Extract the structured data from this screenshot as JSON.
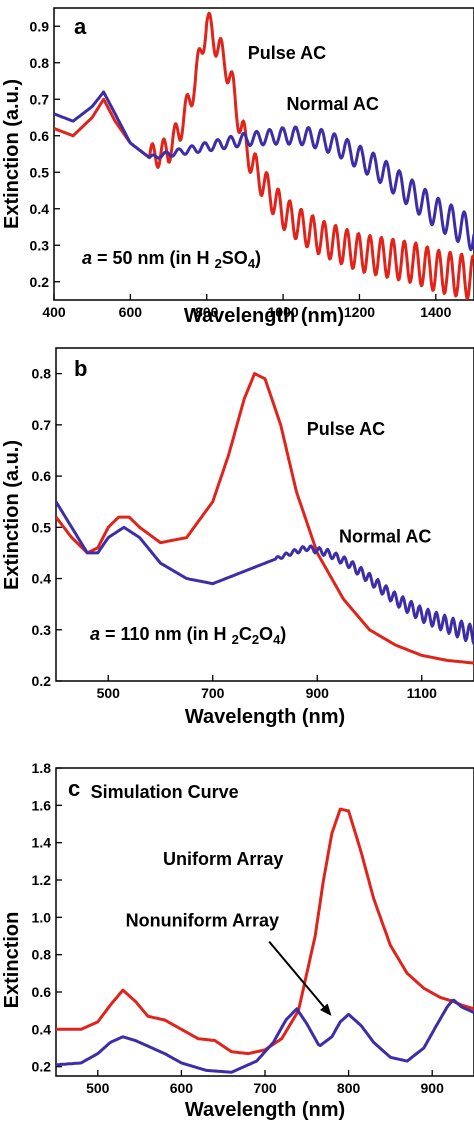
{
  "chart_data": [
    {
      "type": "line",
      "panel_label": "a",
      "xlabel": "Wavelength (nm)",
      "ylabel": "Extinction (a.u.)",
      "xlim": [
        400,
        1500
      ],
      "ylim": [
        0.15,
        0.95
      ],
      "xticks": [
        400,
        600,
        800,
        1000,
        1200,
        1400
      ],
      "yticks": [
        0.2,
        0.3,
        0.4,
        0.5,
        0.6,
        0.7,
        0.8,
        0.9
      ],
      "annotation_prefix": "a",
      "annotation_rest": " = 50 nm (in H",
      "annotation_parts": [
        {
          "t": "2",
          "sub": true
        },
        {
          "t": "SO",
          "sub": false
        },
        {
          "t": "4",
          "sub": true
        },
        {
          "t": ")",
          "sub": false
        }
      ],
      "series": [
        {
          "name": "Pulse AC",
          "color": "#e0241b",
          "x": [
            400,
            450,
            500,
            530,
            560,
            600,
            650,
            700,
            730,
            750,
            770,
            790,
            800,
            815,
            830,
            850,
            870,
            890,
            920,
            960,
            1000,
            1050,
            1100,
            1150,
            1200,
            1250,
            1300,
            1350,
            1400,
            1450,
            1500
          ],
          "y": [
            0.62,
            0.6,
            0.65,
            0.7,
            0.64,
            0.58,
            0.54,
            0.56,
            0.62,
            0.68,
            0.75,
            0.86,
            0.91,
            0.88,
            0.84,
            0.8,
            0.72,
            0.62,
            0.52,
            0.45,
            0.39,
            0.35,
            0.32,
            0.3,
            0.28,
            0.27,
            0.26,
            0.25,
            0.23,
            0.22,
            0.21
          ],
          "ripple": {
            "start": 650,
            "period": 30,
            "amp": 0.035,
            "amp_growth": 3e-05
          }
        },
        {
          "name": "Normal AC",
          "color": "#3d2ea8",
          "x": [
            400,
            450,
            500,
            530,
            560,
            600,
            650,
            700,
            800,
            900,
            1000,
            1050,
            1100,
            1150,
            1200,
            1250,
            1300,
            1350,
            1400,
            1450,
            1500
          ],
          "y": [
            0.66,
            0.64,
            0.68,
            0.72,
            0.66,
            0.58,
            0.54,
            0.55,
            0.57,
            0.59,
            0.6,
            0.6,
            0.59,
            0.57,
            0.54,
            0.51,
            0.47,
            0.43,
            0.39,
            0.36,
            0.33
          ],
          "ripple": {
            "start": 650,
            "period": 34,
            "amp": 0.005,
            "amp_growth": 5e-05
          }
        }
      ],
      "labels": [
        {
          "text": "Pulse AC",
          "x": 1010,
          "y": 0.81
        },
        {
          "text": "Normal AC",
          "x": 1130,
          "y": 0.67
        }
      ]
    },
    {
      "type": "line",
      "panel_label": "b",
      "xlabel": "Wavelength (nm)",
      "ylabel": "Extinction (a.u.)",
      "xlim": [
        400,
        1200
      ],
      "ylim": [
        0.2,
        0.85
      ],
      "xticks": [
        500,
        700,
        900,
        1100
      ],
      "yticks": [
        0.2,
        0.3,
        0.4,
        0.5,
        0.6,
        0.7,
        0.8
      ],
      "annotation_prefix": "a",
      "annotation_rest": " = 110 nm (in H",
      "annotation_parts": [
        {
          "t": "2",
          "sub": true
        },
        {
          "t": "C",
          "sub": false
        },
        {
          "t": "2",
          "sub": true
        },
        {
          "t": "O",
          "sub": false
        },
        {
          "t": "4",
          "sub": true
        },
        {
          "t": ")",
          "sub": false
        }
      ],
      "series": [
        {
          "name": "Pulse AC",
          "color": "#e0241b",
          "x": [
            400,
            430,
            460,
            480,
            500,
            520,
            540,
            560,
            600,
            650,
            700,
            730,
            760,
            780,
            800,
            830,
            860,
            900,
            950,
            1000,
            1050,
            1100,
            1150,
            1200
          ],
          "y": [
            0.52,
            0.48,
            0.45,
            0.46,
            0.5,
            0.52,
            0.52,
            0.5,
            0.47,
            0.48,
            0.55,
            0.64,
            0.75,
            0.8,
            0.79,
            0.7,
            0.57,
            0.45,
            0.36,
            0.3,
            0.27,
            0.25,
            0.24,
            0.235
          ],
          "ripple": null
        },
        {
          "name": "Normal AC",
          "color": "#3d2ea8",
          "x": [
            400,
            430,
            460,
            480,
            500,
            530,
            560,
            600,
            650,
            700,
            750,
            800,
            850,
            880,
            920,
            960,
            1000,
            1050,
            1100,
            1150,
            1200
          ],
          "y": [
            0.55,
            0.5,
            0.45,
            0.45,
            0.48,
            0.5,
            0.48,
            0.43,
            0.4,
            0.39,
            0.41,
            0.43,
            0.45,
            0.46,
            0.45,
            0.43,
            0.4,
            0.36,
            0.33,
            0.31,
            0.29
          ],
          "ripple": {
            "start": 820,
            "period": 16,
            "amp": 0.003,
            "amp_growth": 4e-05
          }
        }
      ],
      "labels": [
        {
          "text": "Pulse AC",
          "x": 955,
          "y": 0.68
        },
        {
          "text": "Normal AC",
          "x": 1030,
          "y": 0.47
        }
      ]
    },
    {
      "type": "line",
      "panel_label": "c",
      "xlabel": "Wavelength (nm)",
      "ylabel": "Extinction",
      "xlim": [
        450,
        950
      ],
      "ylim": [
        0.15,
        1.8
      ],
      "xticks": [
        500,
        600,
        700,
        800,
        900
      ],
      "yticks": [
        0.2,
        0.4,
        0.6,
        0.8,
        1.0,
        1.2,
        1.4,
        1.6,
        1.8
      ],
      "series": [
        {
          "name": "Uniform Array",
          "color": "#e0241b",
          "x": [
            450,
            480,
            500,
            515,
            530,
            545,
            560,
            580,
            600,
            620,
            640,
            660,
            680,
            700,
            720,
            740,
            760,
            770,
            780,
            790,
            800,
            815,
            830,
            850,
            870,
            890,
            910,
            925,
            935,
            950
          ],
          "y": [
            0.4,
            0.4,
            0.44,
            0.53,
            0.61,
            0.55,
            0.47,
            0.45,
            0.4,
            0.35,
            0.34,
            0.28,
            0.27,
            0.29,
            0.35,
            0.5,
            0.9,
            1.2,
            1.45,
            1.58,
            1.57,
            1.35,
            1.1,
            0.85,
            0.7,
            0.62,
            0.57,
            0.55,
            0.53,
            0.51
          ],
          "ripple": null
        },
        {
          "name": "Nonuniform Array",
          "color": "#3d2ea8",
          "x": [
            450,
            480,
            500,
            515,
            530,
            545,
            560,
            580,
            600,
            630,
            660,
            690,
            710,
            725,
            738,
            750,
            765,
            780,
            790,
            800,
            815,
            830,
            850,
            870,
            890,
            905,
            918,
            925,
            935,
            950
          ],
          "y": [
            0.21,
            0.22,
            0.27,
            0.33,
            0.36,
            0.34,
            0.31,
            0.27,
            0.22,
            0.18,
            0.17,
            0.23,
            0.33,
            0.45,
            0.51,
            0.43,
            0.31,
            0.36,
            0.44,
            0.48,
            0.42,
            0.33,
            0.25,
            0.23,
            0.3,
            0.42,
            0.52,
            0.56,
            0.52,
            0.49
          ],
          "ripple": null
        }
      ],
      "labels": [
        {
          "text": "Simulation Curve",
          "x": 580,
          "y": 1.64
        },
        {
          "text": "Uniform Array",
          "x": 650,
          "y": 1.28
        },
        {
          "text": "Nonuniform Array",
          "x": 625,
          "y": 0.95
        }
      ],
      "arrow": {
        "x1": 705,
        "y1": 0.87,
        "x2": 778,
        "y2": 0.48
      }
    }
  ]
}
